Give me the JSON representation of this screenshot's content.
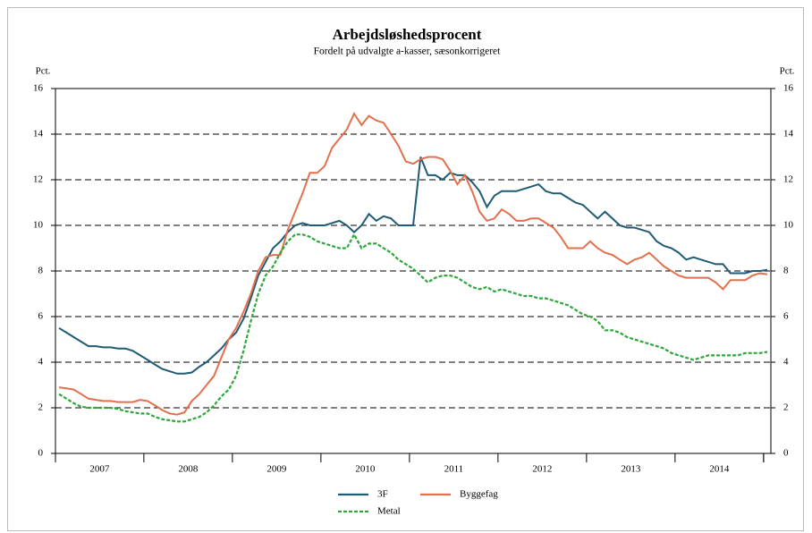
{
  "chart_data": {
    "type": "line",
    "title": "Arbejdsløshedsprocent",
    "subtitle": "Fordelt på udvalgte a-kasser, sæsonkorrigeret",
    "ylabel": "Pct.",
    "y2label": "Pct.",
    "categories": [
      null,
      null,
      null,
      null,
      null,
      null,
      "2007",
      null,
      null,
      null,
      null,
      null,
      null,
      null,
      null,
      null,
      null,
      null,
      "2008",
      null,
      null,
      null,
      null,
      null,
      null,
      null,
      null,
      null,
      null,
      null,
      "2009",
      null,
      null,
      null,
      null,
      null,
      null,
      null,
      null,
      null,
      null,
      null,
      "2010",
      null,
      null,
      null,
      null,
      null,
      null,
      null,
      null,
      null,
      null,
      null,
      "2011",
      null,
      null,
      null,
      null,
      null,
      null,
      null,
      null,
      null,
      null,
      null,
      "2012",
      null,
      null,
      null,
      null,
      null,
      null,
      null,
      null,
      null,
      null,
      null,
      "2013",
      null,
      null,
      null,
      null,
      null,
      null,
      null,
      null,
      null,
      null,
      null,
      "2014",
      null,
      null,
      null,
      null,
      null,
      null
    ],
    "series": [
      {
        "name": "3F",
        "color": "#1f5b73",
        "dash": false,
        "values": [
          5.5,
          5.3,
          5.1,
          4.9,
          4.7,
          4.7,
          4.65,
          4.65,
          4.6,
          4.6,
          4.5,
          4.3,
          4.1,
          3.9,
          3.7,
          3.6,
          3.5,
          3.5,
          3.55,
          3.8,
          4.0,
          4.3,
          4.6,
          5.0,
          5.3,
          5.9,
          6.8,
          7.8,
          8.4,
          9.0,
          9.3,
          9.7,
          10.0,
          10.1,
          10.0,
          10.0,
          10.0,
          10.1,
          10.2,
          10.0,
          9.7,
          10.0,
          10.5,
          10.2,
          10.4,
          10.3,
          10.0,
          10.0,
          10.0,
          13.0,
          12.2,
          12.2,
          12.0,
          12.3,
          12.2,
          12.2,
          11.9,
          11.5,
          10.8,
          11.3,
          11.5,
          11.5,
          11.5,
          11.6,
          11.7,
          11.8,
          11.5,
          11.4,
          11.4,
          11.2,
          11.0,
          10.9,
          10.6,
          10.3,
          10.6,
          10.3,
          10.0,
          9.9,
          9.9,
          9.8,
          9.7,
          9.3,
          9.1,
          9.0,
          8.8,
          8.5,
          8.6,
          8.5,
          8.4,
          8.3,
          8.3,
          7.9,
          7.9,
          7.9,
          8.0,
          8.0,
          8.05
        ]
      },
      {
        "name": "Byggefag",
        "color": "#e36f4d",
        "dash": false,
        "values": [
          2.9,
          2.85,
          2.8,
          2.6,
          2.4,
          2.35,
          2.3,
          2.3,
          2.25,
          2.25,
          2.25,
          2.35,
          2.3,
          2.1,
          1.9,
          1.75,
          1.7,
          1.8,
          2.3,
          2.6,
          3.0,
          3.4,
          4.2,
          5.0,
          5.5,
          6.2,
          7.0,
          8.0,
          8.6,
          8.7,
          8.7,
          9.8,
          10.6,
          11.4,
          12.3,
          12.3,
          12.6,
          13.4,
          13.8,
          14.2,
          14.9,
          14.4,
          14.8,
          14.6,
          14.5,
          14.0,
          13.5,
          12.8,
          12.7,
          12.9,
          13.0,
          13.0,
          12.9,
          12.4,
          11.8,
          12.2,
          11.5,
          10.6,
          10.2,
          10.3,
          10.7,
          10.5,
          10.2,
          10.2,
          10.3,
          10.3,
          10.1,
          9.9,
          9.5,
          9.0,
          9.0,
          9.0,
          9.3,
          9.0,
          8.8,
          8.7,
          8.5,
          8.3,
          8.5,
          8.6,
          8.8,
          8.5,
          8.2,
          8.0,
          7.8,
          7.7,
          7.7,
          7.7,
          7.7,
          7.5,
          7.2,
          7.6,
          7.6,
          7.6,
          7.8,
          7.9,
          7.85
        ]
      },
      {
        "name": "Metal",
        "color": "#2ea63a",
        "dash": true,
        "values": [
          2.6,
          2.4,
          2.2,
          2.05,
          2.0,
          2.0,
          2.0,
          2.0,
          1.95,
          1.85,
          1.8,
          1.75,
          1.75,
          1.6,
          1.5,
          1.45,
          1.4,
          1.4,
          1.5,
          1.6,
          1.8,
          2.1,
          2.5,
          2.8,
          3.4,
          4.5,
          5.8,
          7.0,
          7.8,
          8.2,
          8.8,
          9.3,
          9.6,
          9.6,
          9.5,
          9.3,
          9.2,
          9.1,
          9.0,
          9.0,
          9.6,
          9.0,
          9.2,
          9.2,
          9.0,
          8.8,
          8.5,
          8.3,
          8.1,
          7.8,
          7.5,
          7.7,
          7.8,
          7.8,
          7.7,
          7.5,
          7.3,
          7.2,
          7.3,
          7.1,
          7.2,
          7.1,
          7.0,
          6.9,
          6.9,
          6.8,
          6.8,
          6.7,
          6.6,
          6.5,
          6.3,
          6.1,
          6.0,
          5.8,
          5.4,
          5.4,
          5.3,
          5.1,
          5.0,
          4.9,
          4.8,
          4.7,
          4.6,
          4.4,
          4.3,
          4.2,
          4.1,
          4.2,
          4.3,
          4.3,
          4.3,
          4.3,
          4.3,
          4.4,
          4.4,
          4.4,
          4.45
        ]
      }
    ],
    "ylim": [
      0,
      16
    ],
    "yticks": [
      0,
      2,
      4,
      6,
      8,
      10,
      12,
      14,
      16
    ],
    "y2lim": [
      0,
      16
    ],
    "y2ticks": [
      0,
      2,
      4,
      6,
      8,
      10,
      12,
      14,
      16
    ],
    "grid": true
  }
}
